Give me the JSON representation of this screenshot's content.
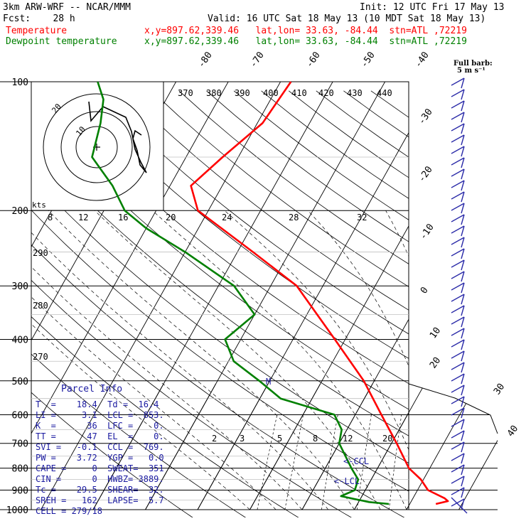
{
  "header": {
    "model": "3km ARW-WRF -- NCAR/MMM",
    "init": "Init: 12 UTC Fri 17 May 13",
    "fcst": "Fcst:    28 h",
    "valid": "Valid: 16 UTC Sat 18 May 13 (10 MDT Sat 18 May 13)",
    "temp_label": "Temperature",
    "temp_loc": "x,y=897.62,339.46   lat,lon= 33.63, -84.44  stn=ATL ,72219",
    "dew_label": "Dewpoint temperature",
    "dew_loc": "x,y=897.62,339.46   lat,lon= 33.63, -84.44  stn=ATL ,72219",
    "full_barb": "Full barb:",
    "full_barb_unit": "5 m s⁻¹"
  },
  "colors": {
    "temperature": "#ff0000",
    "dewpoint": "#008000",
    "panel_text": "#1a1aa0",
    "hodograph": "#000000"
  },
  "chart_data": {
    "type": "skew-t",
    "y_axis": {
      "scale": "log-pressure",
      "units": "hPa",
      "range": [
        1000,
        100
      ],
      "ticks": [
        "100",
        "200",
        "300",
        "400",
        "500",
        "600",
        "700",
        "800",
        "900",
        "1000"
      ]
    },
    "isotherm_labels": [
      "-80",
      "-70",
      "-60",
      "-50",
      "-40",
      "-30",
      "-20",
      "-10",
      "0",
      "10",
      "20",
      "30",
      "40"
    ],
    "theta_labels": [
      "370",
      "380",
      "390",
      "400",
      "410",
      "420",
      "430",
      "440"
    ],
    "theta_side_labels": [
      "290",
      "280",
      "270"
    ],
    "mixing_ratio_labels": [
      "2",
      "3",
      "5",
      "8",
      "12",
      "20"
    ],
    "hodograph": {
      "speed_units": "kts",
      "ring_labels": [
        "8",
        "12",
        "16",
        "20",
        "24",
        "28",
        "32"
      ]
    },
    "series": [
      {
        "name": "Temperature",
        "points": [
          [
            970,
            25
          ],
          [
            955,
            27
          ],
          [
            940,
            26
          ],
          [
            900,
            22
          ],
          [
            850,
            19.5
          ],
          [
            800,
            16
          ],
          [
            700,
            11
          ],
          [
            600,
            5
          ],
          [
            500,
            -2
          ],
          [
            400,
            -12
          ],
          [
            300,
            -25
          ],
          [
            250,
            -37
          ],
          [
            200,
            -52
          ],
          [
            175,
            -56
          ],
          [
            150,
            -53
          ],
          [
            125,
            -49
          ],
          [
            100,
            -48
          ]
        ]
      },
      {
        "name": "Dewpoint temperature",
        "points": [
          [
            970,
            16
          ],
          [
            960,
            12
          ],
          [
            930,
            6
          ],
          [
            900,
            8
          ],
          [
            850,
            7.5
          ],
          [
            800,
            5
          ],
          [
            700,
            0
          ],
          [
            650,
            -1
          ],
          [
            600,
            -4
          ],
          [
            550,
            -16
          ],
          [
            500,
            -22
          ],
          [
            450,
            -29
          ],
          [
            400,
            -33
          ],
          [
            350,
            -30
          ],
          [
            300,
            -37
          ],
          [
            250,
            -50
          ],
          [
            220,
            -60
          ],
          [
            200,
            -66
          ],
          [
            175,
            -71
          ],
          [
            150,
            -78
          ],
          [
            125,
            -80
          ],
          [
            110,
            -82
          ],
          [
            100,
            -85
          ]
        ]
      }
    ],
    "levels_marked": [
      "CCL",
      "LCL"
    ],
    "marker_M": "M"
  },
  "parcel_info": {
    "title": "Parcel Info",
    "rows": [
      "T  =    18.4  Td =  16.4",
      "LI =     3.1  LCL =  853.",
      "K  =      36  LFC =    0.",
      "TT =      47  EL  =    0.",
      "SVI =   -0.1  CCL =  769.",
      "PW =    3.72  YGP =   0.0",
      "CAPE =     0  SWEAT=  351",
      "CIN =      0  HWBZ= 3889.",
      "Tc =    29.5  SHEAR=  32.",
      "SREH =   162  LAPSE=  5.7",
      "CELL = 279/18"
    ]
  }
}
